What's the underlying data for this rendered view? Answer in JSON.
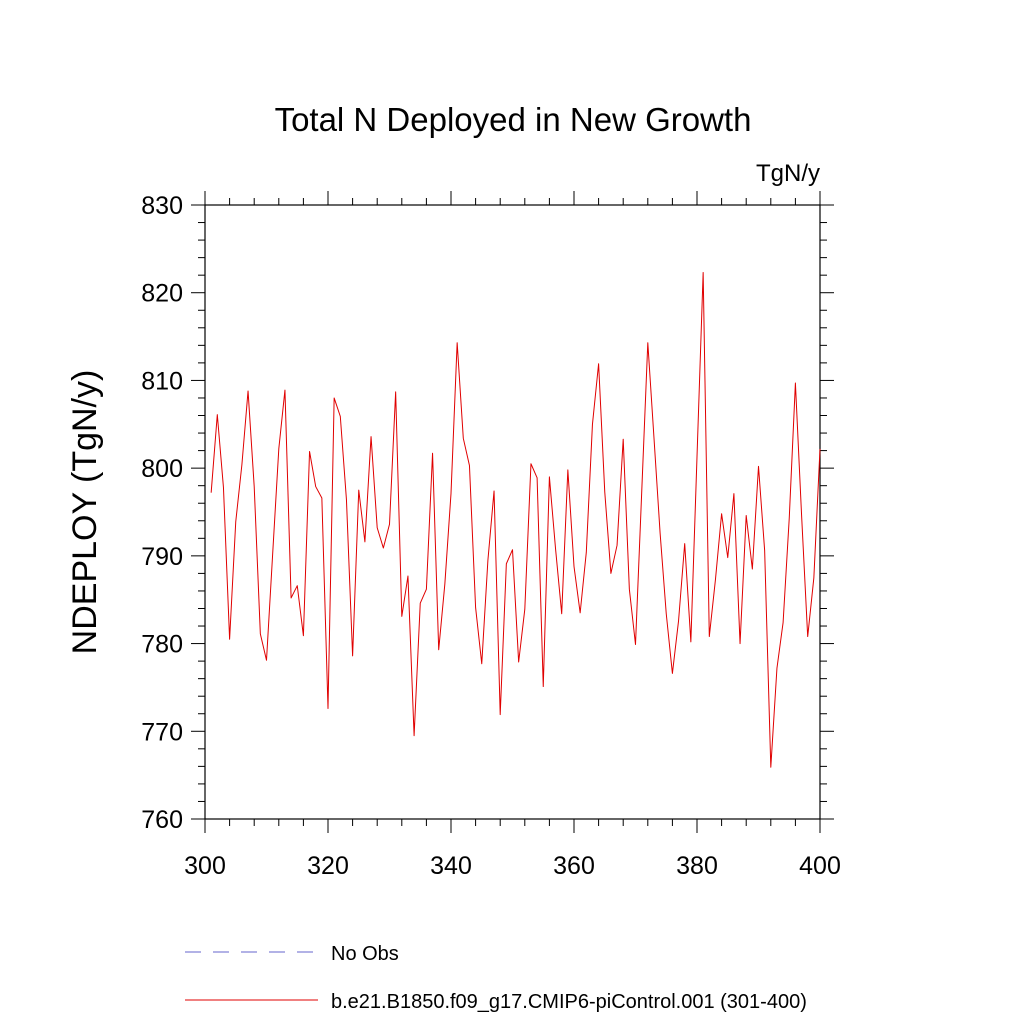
{
  "chart_data": {
    "type": "line",
    "title": "Total N Deployed in New Growth",
    "units": "TgN/y",
    "ylabel": "NDEPLOY  (TgN/y)",
    "xlabel": "",
    "xlim": [
      300,
      400
    ],
    "ylim": [
      760,
      830
    ],
    "xticks": [
      300,
      320,
      340,
      360,
      380,
      400
    ],
    "yticks": [
      760,
      770,
      780,
      790,
      800,
      810,
      820,
      830
    ],
    "grid": false,
    "series": [
      {
        "name": "b.e21.B1850.f09_g17.CMIP6-piControl.001 (301-400)",
        "color": "#e00000",
        "style": "solid",
        "x": [
          301,
          302,
          303,
          304,
          305,
          306,
          307,
          308,
          309,
          310,
          311,
          312,
          313,
          314,
          315,
          316,
          317,
          318,
          319,
          320,
          321,
          322,
          323,
          324,
          325,
          326,
          327,
          328,
          329,
          330,
          331,
          332,
          333,
          334,
          335,
          336,
          337,
          338,
          339,
          340,
          341,
          342,
          343,
          344,
          345,
          346,
          347,
          348,
          349,
          350,
          351,
          352,
          353,
          354,
          355,
          356,
          357,
          358,
          359,
          360,
          361,
          362,
          363,
          364,
          365,
          366,
          367,
          368,
          369,
          370,
          371,
          372,
          373,
          374,
          375,
          376,
          377,
          378,
          379,
          380,
          381,
          382,
          383,
          384,
          385,
          386,
          387,
          388,
          389,
          390,
          391,
          392,
          393,
          394,
          395,
          396,
          397,
          398,
          399,
          400
        ],
        "values": [
          797.2,
          806.1,
          797.8,
          780.5,
          793.9,
          800.4,
          808.8,
          797.9,
          781.1,
          778.1,
          790.2,
          802.2,
          808.9,
          785.2,
          786.6,
          780.9,
          801.9,
          797.9,
          796.6,
          772.6,
          808.0,
          805.9,
          796.4,
          778.6,
          797.5,
          791.6,
          803.6,
          793.2,
          790.9,
          793.6,
          808.7,
          783.1,
          787.7,
          769.5,
          784.6,
          786.2,
          801.7,
          779.3,
          786.8,
          797.1,
          814.3,
          803.4,
          800.3,
          784.1,
          777.7,
          789.5,
          797.4,
          771.9,
          789.1,
          790.7,
          777.9,
          783.9,
          800.5,
          798.9,
          775.1,
          799.0,
          790.8,
          783.4,
          799.8,
          788.8,
          783.5,
          790.4,
          805.0,
          811.9,
          797.3,
          788.0,
          791.2,
          803.3,
          786.2,
          779.9,
          797.1,
          814.3,
          803.5,
          792.6,
          783.4,
          776.6,
          782.6,
          791.4,
          780.2,
          801.3,
          822.3,
          780.8,
          787.3,
          794.8,
          789.8,
          797.1,
          780.0,
          794.6,
          788.5,
          800.2,
          790.6,
          765.9,
          777.2,
          782.4,
          794.3,
          809.7,
          794.7,
          780.8,
          787.5,
          802.2
        ]
      },
      {
        "name": "No Obs",
        "color": "#6666cc",
        "style": "dashed",
        "x": [],
        "values": []
      }
    ],
    "legend_position": "bottom"
  }
}
